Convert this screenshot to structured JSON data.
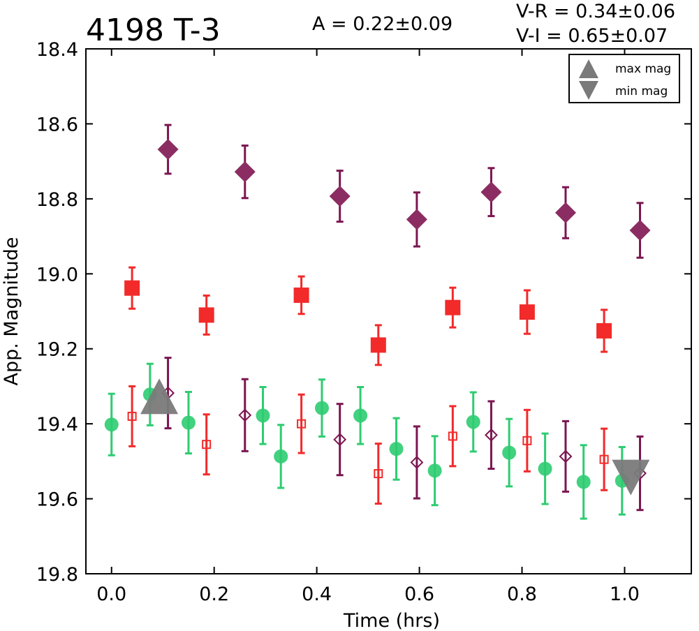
{
  "chart_data": {
    "type": "scatter",
    "title": "4198 T-3",
    "annotations": {
      "amplitude": "A  = 0.22±0.09",
      "v_minus_r": "V-R = 0.34±0.06",
      "v_minus_i": "V-I  = 0.65±0.07"
    },
    "xlabel": "Time (hrs)",
    "ylabel": "App. Magnitude",
    "xlim": [
      -0.05,
      1.13
    ],
    "ylim": [
      19.8,
      18.4
    ],
    "y_inverted": true,
    "xticks": [
      "0.0",
      "0.2",
      "0.4",
      "0.6",
      "0.8",
      "1.0"
    ],
    "yticks": [
      "18.4",
      "18.6",
      "18.8",
      "19.0",
      "19.2",
      "19.4",
      "19.6",
      "19.8"
    ],
    "grid": false,
    "legend": {
      "placement": "top-right",
      "entries": [
        {
          "label": "max mag",
          "marker": "triangle-up"
        },
        {
          "label": "min mag",
          "marker": "triangle-down"
        }
      ]
    },
    "colors": {
      "green": "#2ecc71",
      "red": "#f22a2a",
      "purple": "#7b1650",
      "purple_fill": "#8b2d62",
      "gray": "#7a7a7a"
    },
    "series": [
      {
        "marker": "filled-diamond",
        "color": "#7b1650",
        "x": [
          0.11,
          0.26,
          0.445,
          0.595,
          0.74,
          0.885,
          1.03
        ],
        "y": [
          18.668,
          18.728,
          18.793,
          18.855,
          18.782,
          18.837,
          18.884
        ],
        "err": [
          0.065,
          0.07,
          0.068,
          0.072,
          0.064,
          0.068,
          0.073
        ]
      },
      {
        "marker": "filled-square",
        "color": "#f22a2a",
        "x": [
          0.04,
          0.185,
          0.37,
          0.52,
          0.665,
          0.81,
          0.96
        ],
        "y": [
          19.038,
          19.11,
          19.057,
          19.19,
          19.09,
          19.102,
          19.152
        ],
        "err": [
          0.055,
          0.052,
          0.05,
          0.053,
          0.053,
          0.058,
          0.056
        ]
      },
      {
        "marker": "circle",
        "color": "#2ecc71",
        "x": [
          0.0,
          0.075,
          0.15,
          0.295,
          0.33,
          0.41,
          0.485,
          0.555,
          0.63,
          0.705,
          0.775,
          0.845,
          0.92,
          0.995
        ],
        "y": [
          19.402,
          19.322,
          19.397,
          19.378,
          19.487,
          19.358,
          19.378,
          19.467,
          19.525,
          19.395,
          19.477,
          19.52,
          19.555,
          19.552
        ],
        "err": [
          0.082,
          0.082,
          0.082,
          0.076,
          0.084,
          0.076,
          0.076,
          0.082,
          0.092,
          0.079,
          0.09,
          0.094,
          0.098,
          0.09
        ]
      },
      {
        "marker": "open-square",
        "color": "#f22a2a",
        "x": [
          0.04,
          0.185,
          0.37,
          0.52,
          0.665,
          0.81,
          0.96
        ],
        "y": [
          19.38,
          19.455,
          19.4,
          19.533,
          19.433,
          19.445,
          19.495
        ],
        "err": [
          0.08,
          0.08,
          0.078,
          0.08,
          0.08,
          0.082,
          0.082
        ]
      },
      {
        "marker": "open-diamond",
        "color": "#7b1650",
        "x": [
          0.11,
          0.26,
          0.445,
          0.595,
          0.74,
          0.885,
          1.03
        ],
        "y": [
          19.318,
          19.377,
          19.442,
          19.503,
          19.43,
          19.487,
          19.532
        ],
        "err": [
          0.094,
          0.096,
          0.095,
          0.096,
          0.09,
          0.094,
          0.098
        ]
      },
      {
        "marker": "triangle-up",
        "color": "#7a7a7a",
        "label": "max mag",
        "x": [
          0.093
        ],
        "y": [
          19.335
        ],
        "err": [
          0
        ]
      },
      {
        "marker": "triangle-down",
        "color": "#7a7a7a",
        "label": "min mag",
        "x": [
          1.012
        ],
        "y": [
          19.535
        ],
        "err": [
          0
        ]
      }
    ]
  }
}
